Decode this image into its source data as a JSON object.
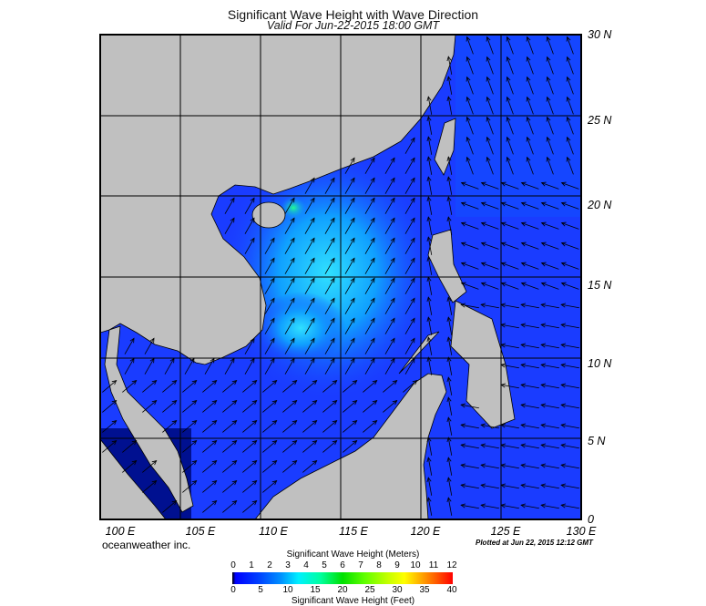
{
  "header": {
    "title": "Significant Wave Height with Wave Direction",
    "subtitle": "Valid For Jun-22-2015 18:00 GMT"
  },
  "map": {
    "lon_labels": [
      "100 E",
      "105 E",
      "110 E",
      "115 E",
      "120 E",
      "125 E",
      "130 E"
    ],
    "lat_labels": [
      "0",
      "5 N",
      "10 N",
      "15 N",
      "20 N",
      "25 N",
      "30 N"
    ],
    "lon_range": [
      100,
      130
    ],
    "lat_range": [
      0,
      30
    ],
    "colors": {
      "land": "#c0c0c0",
      "sea": "#1a3cff",
      "high_sea": "#18c8ff"
    }
  },
  "footer": {
    "credit": "oceanweather inc.",
    "plotted": "Plotted at Jun 22, 2015 12:12 GMT"
  },
  "colorbar": {
    "title_meters": "Significant Wave Height (Meters)",
    "title_feet": "Significant Wave Height (Feet)",
    "meters_ticks": [
      "0",
      "1",
      "2",
      "3",
      "4",
      "5",
      "6",
      "7",
      "8",
      "9",
      "10",
      "11",
      "12"
    ],
    "feet_ticks": [
      "0",
      "5",
      "10",
      "15",
      "20",
      "25",
      "30",
      "35",
      "40"
    ]
  }
}
